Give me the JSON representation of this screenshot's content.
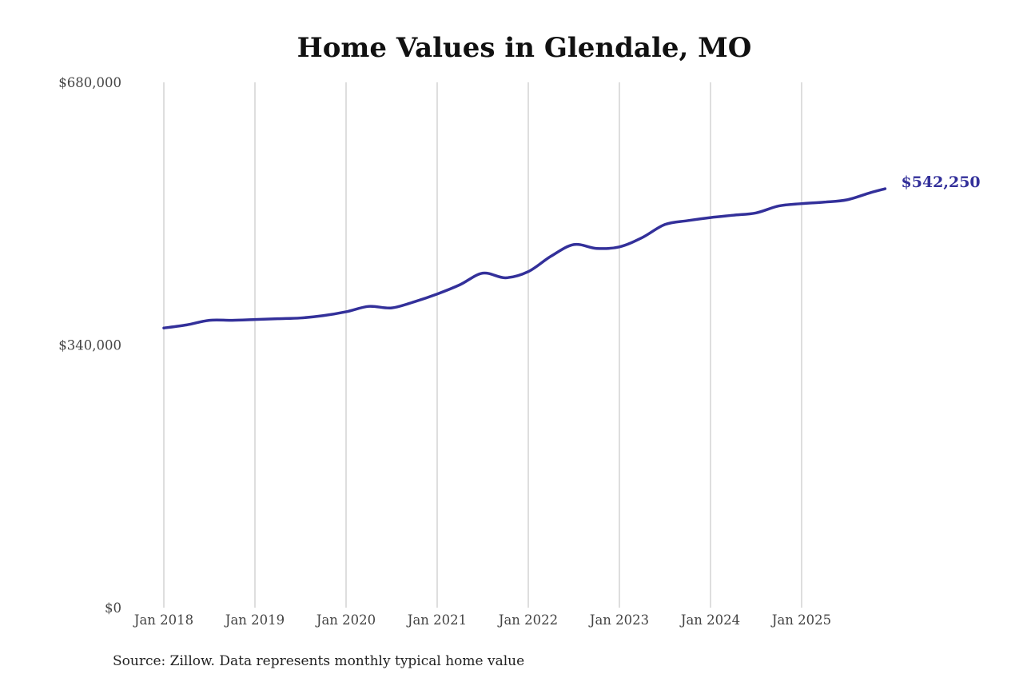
{
  "chart_data": {
    "type": "line",
    "title": "Home Values in Glendale, MO",
    "source": "Source: Zillow. Data represents monthly typical home value",
    "xlabel": "",
    "ylabel": "",
    "ylim": [
      0,
      680000
    ],
    "yticks": [
      "$0",
      "$340,000",
      "$680,000"
    ],
    "ytick_values": [
      0,
      340000,
      680000
    ],
    "xticks": [
      "Jan 2018",
      "Jan 2019",
      "Jan 2020",
      "Jan 2021",
      "Jan 2022",
      "Jan 2023",
      "Jan 2024",
      "Jan 2025"
    ],
    "xtick_dates": [
      "2018-01",
      "2019-01",
      "2020-01",
      "2021-01",
      "2022-01",
      "2023-01",
      "2024-01",
      "2025-01"
    ],
    "grid": "vertical",
    "line_color": "#33309a",
    "end_label": "$542,250",
    "series": [
      {
        "x": [
          "2018-01",
          "2018-04",
          "2018-07",
          "2018-10",
          "2019-01",
          "2019-04",
          "2019-07",
          "2019-10",
          "2020-01",
          "2020-04",
          "2020-07",
          "2020-10",
          "2021-01",
          "2021-04",
          "2021-07",
          "2021-10",
          "2022-01",
          "2022-04",
          "2022-07",
          "2022-10",
          "2023-01",
          "2023-04",
          "2023-07",
          "2023-10",
          "2024-01",
          "2024-04",
          "2024-07",
          "2024-10",
          "2025-01",
          "2025-04",
          "2025-07",
          "2025-10",
          "2025-12"
        ],
        "y": [
          362000,
          366000,
          372000,
          372000,
          373000,
          374000,
          375000,
          378000,
          383000,
          390000,
          388000,
          396000,
          406000,
          418000,
          433000,
          427000,
          435000,
          455000,
          470000,
          465000,
          467000,
          479000,
          496000,
          501000,
          505000,
          508000,
          511000,
          520000,
          523000,
          525000,
          528000,
          537000,
          542250
        ]
      }
    ]
  }
}
